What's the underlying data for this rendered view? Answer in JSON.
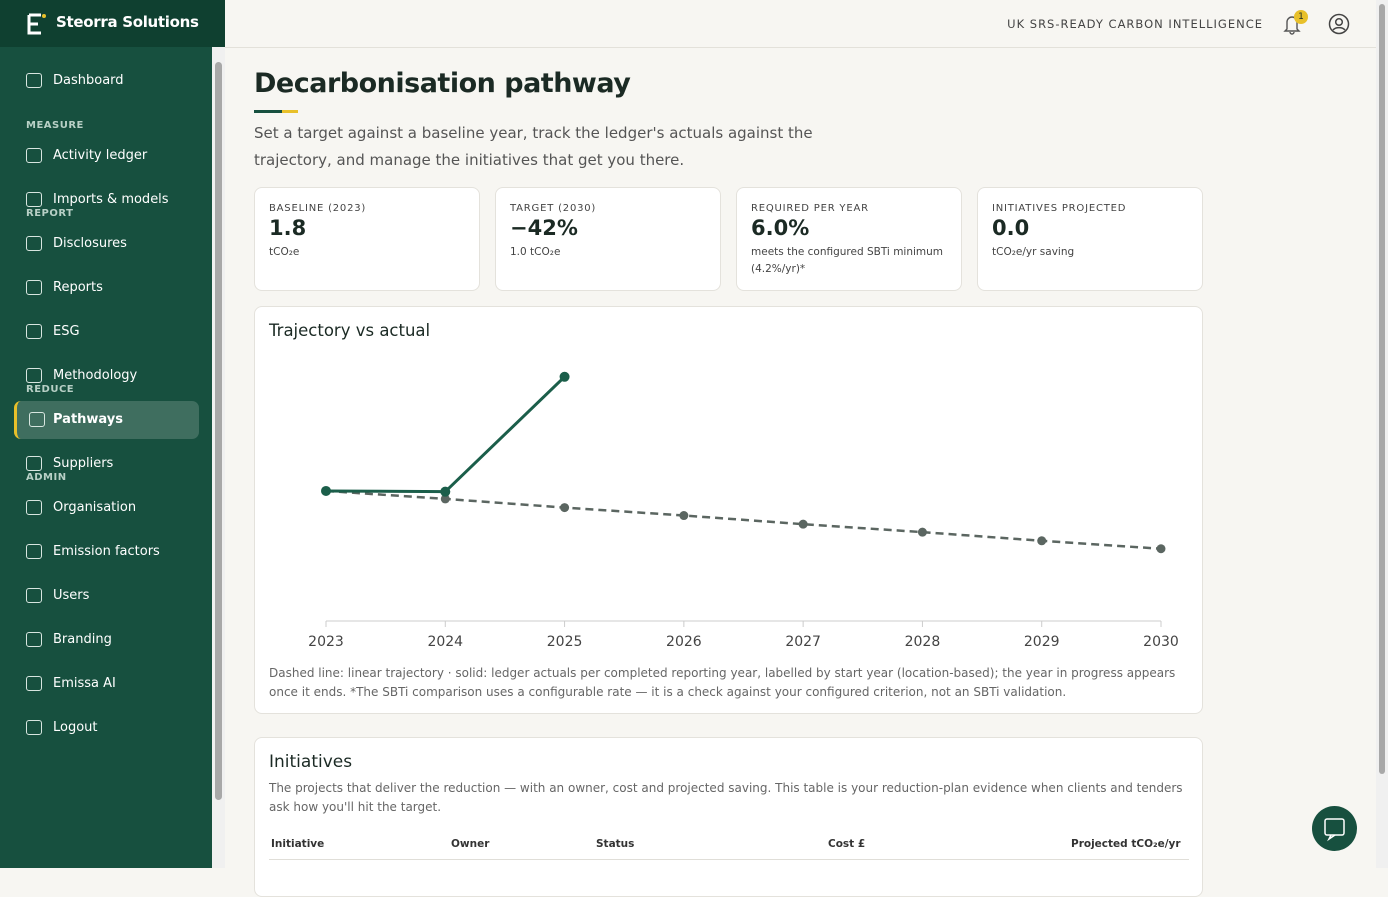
{
  "brand": "Steorra Solutions",
  "nav": [
    {
      "items": [
        "Dashboard"
      ]
    },
    {
      "heading": "MEASURE",
      "items": [
        "Activity ledger",
        "Imports & models"
      ]
    },
    {
      "heading": "REPORT",
      "items": [
        "Disclosures",
        "Reports",
        "ESG",
        "Methodology"
      ]
    },
    {
      "heading": "REDUCE",
      "items": [
        "Pathways",
        "Suppliers"
      ]
    },
    {
      "heading": "ADMIN",
      "items": [
        "Organisation",
        "Emission factors",
        "Users",
        "Branding",
        "Emissa AI",
        "Logout"
      ]
    }
  ],
  "active_item": "Pathways",
  "header": {
    "tagline": "UK SRS-READY CARBON INTELLIGENCE",
    "notifications": "1"
  },
  "page": {
    "title": "Decarbonisation pathway",
    "subtitle": "Set a target against a baseline year, track the ledger's actuals against the trajectory, and manage the initiatives that get you there."
  },
  "kpis": [
    {
      "label": "BASELINE (2023)",
      "value": "1.8",
      "note": "tCO₂e"
    },
    {
      "label": "TARGET (2030)",
      "value": "−42%",
      "note": "1.0 tCO₂e"
    },
    {
      "label": "REQUIRED PER YEAR",
      "value": "6.0%",
      "note": "meets the configured SBTi minimum (4.2%/yr)*"
    },
    {
      "label": "INITIATIVES PROJECTED",
      "value": "0.0",
      "note": "tCO₂e/yr saving"
    }
  ],
  "chart_card": {
    "title": "Trajectory vs actual",
    "footnote": "Dashed line: linear trajectory · solid: ledger actuals per completed reporting year, labelled by start year (location-based); the year in progress appears once it ends. *The SBTi comparison uses a configurable rate — it is a check against your configured criterion, not an SBTi validation."
  },
  "chart_data": {
    "type": "line",
    "x": [
      2023,
      2024,
      2025,
      2026,
      2027,
      2028,
      2029,
      2030
    ],
    "xlim": [
      2023,
      2030
    ],
    "xticks": [
      2023,
      2024,
      2025,
      2026,
      2027,
      2028,
      2029,
      2030
    ],
    "ylim": [
      0,
      4
    ],
    "series": [
      {
        "color": "#5b6661",
        "dashed": true,
        "values": [
          1.8,
          1.69,
          1.57,
          1.46,
          1.34,
          1.23,
          1.11,
          1.0
        ]
      },
      {
        "color": "#1b5e4a",
        "dashed": false,
        "values": [
          1.8,
          1.79,
          3.38,
          null,
          null,
          null,
          null,
          null
        ]
      }
    ]
  },
  "initiatives": {
    "title": "Initiatives",
    "description": "The projects that deliver the reduction — with an owner, cost and projected saving. This table is your reduction-plan evidence when clients and tenders ask how you'll hit the target.",
    "columns": [
      "Initiative",
      "Owner",
      "Status",
      "Cost £",
      "Projected tCO₂e/yr"
    ]
  }
}
